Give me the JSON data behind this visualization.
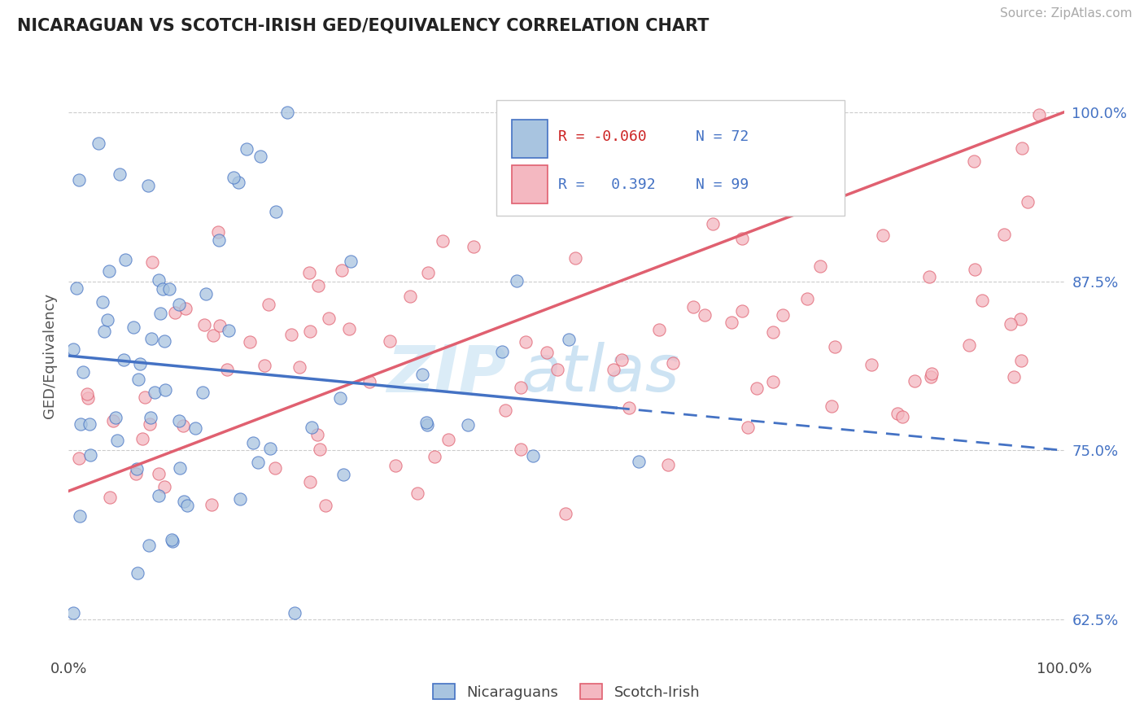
{
  "title": "NICARAGUAN VS SCOTCH-IRISH GED/EQUIVALENCY CORRELATION CHART",
  "source_text": "Source: ZipAtlas.com",
  "ylabel": "GED/Equivalency",
  "xlim": [
    0,
    100
  ],
  "ylim": [
    60,
    104
  ],
  "yticks": [
    62.5,
    75.0,
    87.5,
    100.0
  ],
  "xticks": [
    0,
    100
  ],
  "xticklabels": [
    "0.0%",
    "100.0%"
  ],
  "yticklabels": [
    "62.5%",
    "75.0%",
    "87.5%",
    "100.0%"
  ],
  "blue_fill": "#a8c4e0",
  "blue_edge": "#4472c4",
  "pink_fill": "#f4b8c1",
  "pink_edge": "#e06070",
  "blue_line_color": "#4472c4",
  "pink_line_color": "#e06070",
  "blue_line_y0": 82.0,
  "blue_line_y1": 75.0,
  "pink_line_y0": 72.0,
  "pink_line_y1": 100.0,
  "legend_r1": "R = -0.060",
  "legend_n1": "N = 72",
  "legend_r2": "R =   0.392",
  "legend_n2": "N = 99",
  "watermark_part1": "ZIP",
  "watermark_part2": "atlas",
  "blue_N": 72,
  "pink_N": 99,
  "blue_x_seed": 7,
  "pink_x_seed": 13
}
